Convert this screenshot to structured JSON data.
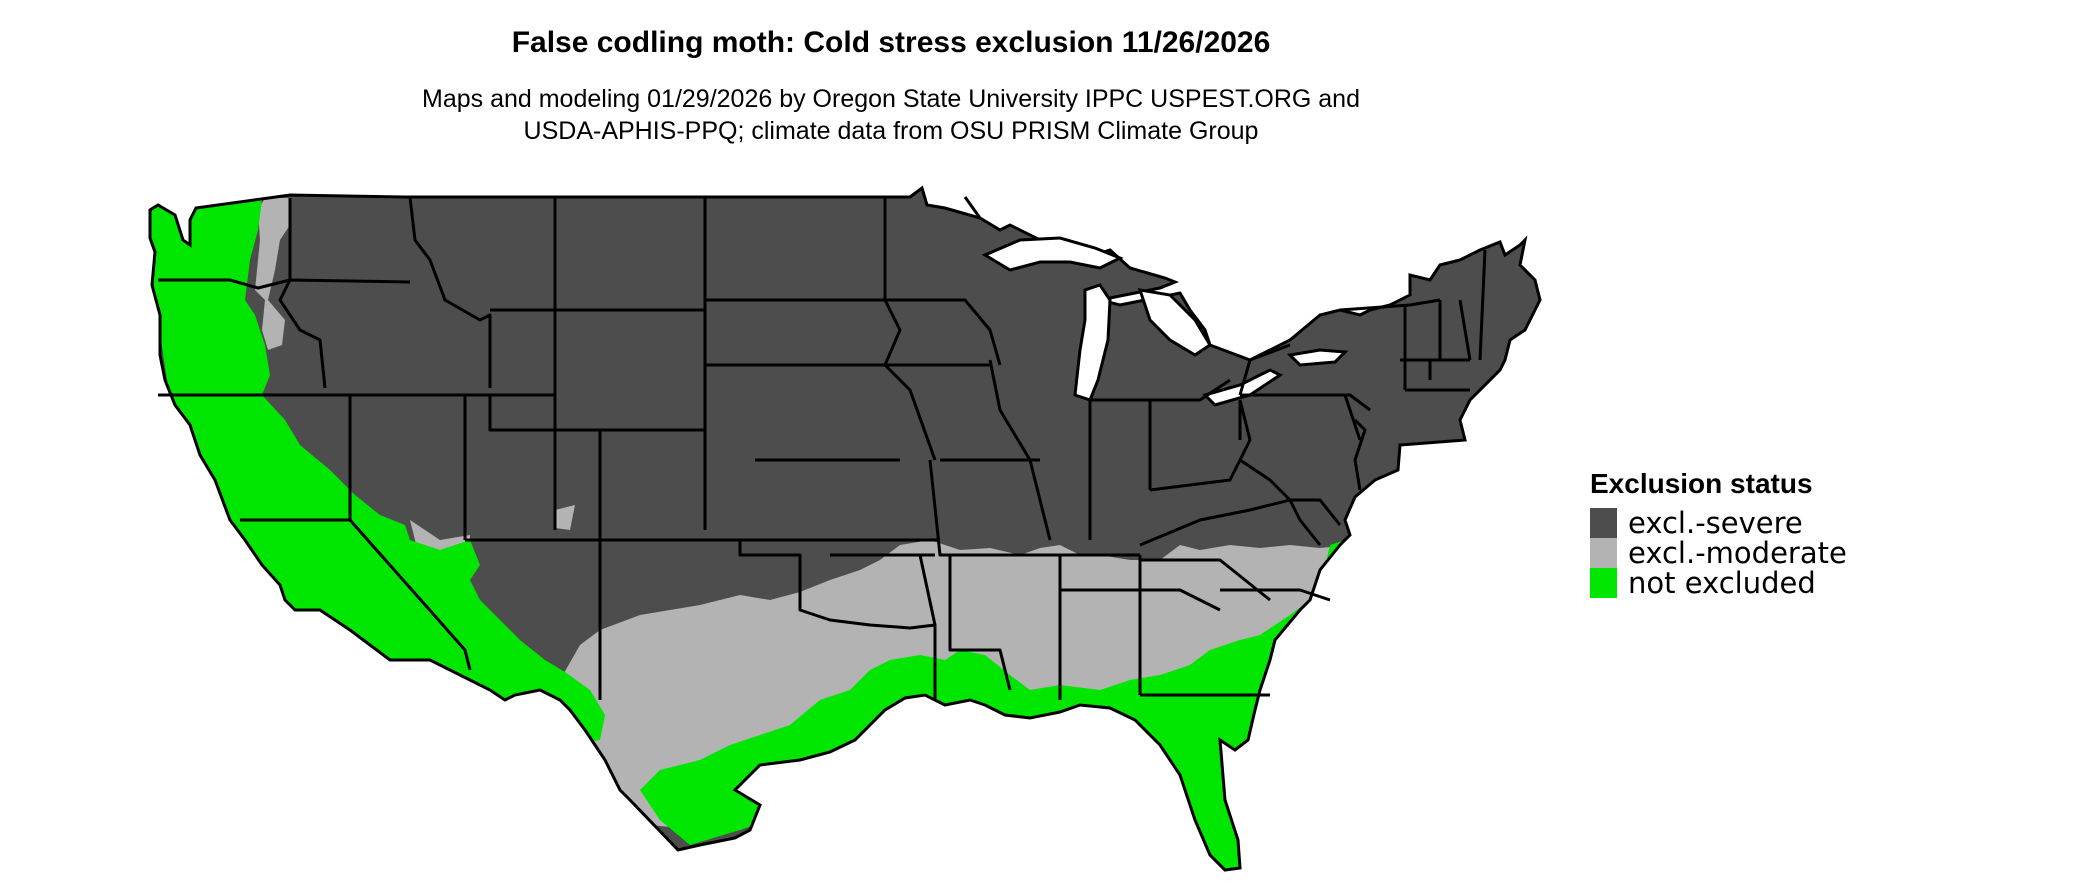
{
  "title": "False codling moth: Cold stress exclusion 11/26/2026",
  "subtitle_line1": "Maps and modeling 01/29/2026 by Oregon State University IPPC USPEST.ORG and",
  "subtitle_line2": "USDA-APHIS-PPQ; climate data from OSU PRISM Climate Group",
  "legend": {
    "title": "Exclusion status",
    "items": [
      {
        "label": "excl.-severe",
        "color": "#4d4d4d"
      },
      {
        "label": "excl.-moderate",
        "color": "#b3b3b3"
      },
      {
        "label": "not excluded",
        "color": "#00e600"
      }
    ]
  },
  "colors": {
    "severe": "#4d4d4d",
    "moderate": "#b3b3b3",
    "not_excluded": "#00e600",
    "border": "#000000"
  }
}
